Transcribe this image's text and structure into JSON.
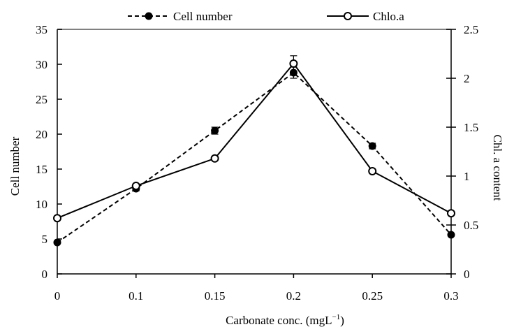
{
  "chart_data": {
    "type": "line",
    "title": "",
    "xlabel": "Carbonate conc. (mgL",
    "xlabel_sup": "−1",
    "xlabel_close": ")",
    "ylabel_left": "Cell number",
    "ylabel_right": "Chl. a content",
    "categories": [
      "0",
      "0.1",
      "0.15",
      "0.2",
      "0.25",
      "0.3"
    ],
    "ylim_left": [
      0,
      35
    ],
    "ylim_right": [
      0,
      2.5
    ],
    "yticks_left": [
      "0",
      "5",
      "10",
      "15",
      "20",
      "25",
      "30",
      "35"
    ],
    "yticks_right": [
      "0",
      "0.5",
      "1",
      "1.5",
      "2",
      "2.5"
    ],
    "legend_position": "top-center",
    "grid": false,
    "series": [
      {
        "name": "Cell number",
        "axis": "left",
        "style": "dashed",
        "marker": "filled-circle",
        "color": "#000000",
        "values": [
          4.5,
          12.2,
          20.5,
          28.8,
          18.3,
          5.6
        ],
        "errors": [
          0.2,
          0.3,
          0.5,
          0.8,
          0.4,
          0.2
        ]
      },
      {
        "name": "Chlo.a",
        "axis": "right",
        "style": "solid",
        "marker": "open-circle",
        "color": "#000000",
        "values": [
          0.57,
          0.9,
          1.18,
          2.15,
          1.05,
          0.62
        ],
        "errors": [
          0.02,
          0.02,
          0.02,
          0.08,
          0.02,
          0.02
        ]
      }
    ]
  }
}
